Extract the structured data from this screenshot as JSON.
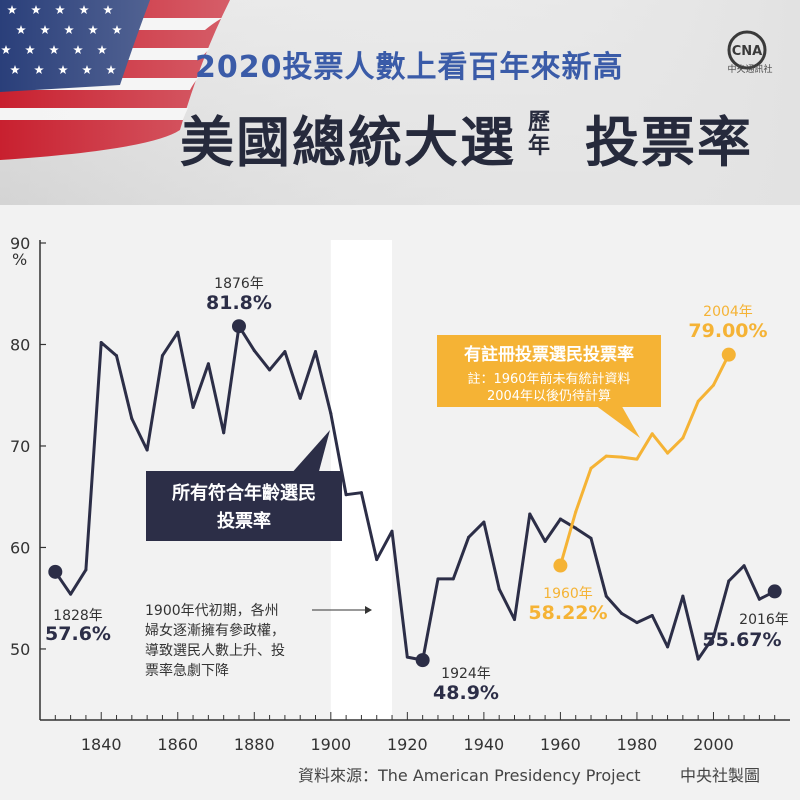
{
  "header": {
    "subtitle": "2020投票人數上看百年來新高",
    "title_part1": "美國總統大選",
    "title_small_top": "歷",
    "title_small_bottom": "年",
    "title_part2": "投票率",
    "logo_text": "CNA",
    "logo_sub": "中央通訊社"
  },
  "footer": {
    "source": "資料來源：The American Presidency Project",
    "credit": "中央社製圖"
  },
  "colors": {
    "all_series": "#2c2e47",
    "registered_series": "#f5b335",
    "title_blue": "#3a5ba8",
    "header_bg": "#dcdcdc"
  },
  "chart_data": {
    "type": "line",
    "title": "",
    "xlabel": "",
    "ylabel": "%",
    "xlim": [
      1824,
      2020
    ],
    "ylim": [
      43,
      90
    ],
    "x_ticks": [
      1840,
      1860,
      1880,
      1900,
      1920,
      1940,
      1960,
      1980,
      2000
    ],
    "y_ticks": [
      50,
      60,
      70,
      80,
      90
    ],
    "y_unit": "%",
    "grid": false,
    "shaded_band": {
      "x": [
        1900,
        1916
      ]
    },
    "series": [
      {
        "name": "所有符合年齡選民投票率",
        "color": "#2c2e47",
        "x": [
          1828,
          1832,
          1836,
          1840,
          1844,
          1848,
          1852,
          1856,
          1860,
          1864,
          1868,
          1872,
          1876,
          1880,
          1884,
          1888,
          1892,
          1896,
          1900,
          1904,
          1908,
          1912,
          1916,
          1920,
          1924,
          1928,
          1932,
          1936,
          1940,
          1944,
          1948,
          1952,
          1956,
          1960,
          1964,
          1968,
          1972,
          1976,
          1980,
          1984,
          1988,
          1992,
          1996,
          2000,
          2004,
          2008,
          2012,
          2016
        ],
        "y": [
          57.6,
          55.4,
          57.8,
          80.2,
          78.9,
          72.7,
          69.6,
          78.9,
          81.2,
          73.8,
          78.1,
          71.3,
          81.8,
          79.4,
          77.5,
          79.3,
          74.7,
          79.3,
          73.2,
          65.2,
          65.4,
          58.8,
          61.6,
          49.2,
          48.9,
          56.9,
          56.9,
          61.0,
          62.5,
          55.9,
          52.9,
          63.3,
          60.6,
          62.8,
          61.9,
          60.9,
          55.2,
          53.5,
          52.6,
          53.3,
          50.2,
          55.2,
          49.0,
          51.2,
          56.7,
          58.2,
          54.9,
          55.67
        ]
      },
      {
        "name": "有註冊投票選民投票率",
        "color": "#f5b335",
        "x": [
          1960,
          1964,
          1968,
          1972,
          1976,
          1980,
          1984,
          1988,
          1992,
          1996,
          2000,
          2004
        ],
        "y": [
          58.22,
          63.5,
          67.8,
          69.0,
          68.9,
          68.7,
          71.2,
          69.3,
          70.8,
          74.4,
          76.0,
          79.0
        ]
      }
    ],
    "annotations": {
      "p1828": {
        "year": "1828年",
        "value": "57.6%"
      },
      "p1876": {
        "year": "1876年",
        "value": "81.8%"
      },
      "p1924": {
        "year": "1924年",
        "value": "48.9%"
      },
      "p1960": {
        "year": "1960年",
        "value": "58.22%"
      },
      "p2004": {
        "year": "2004年",
        "value": "79.00%"
      },
      "p2016": {
        "year": "2016年",
        "value": "55.67%"
      },
      "all_label_line1": "所有符合年齡選民",
      "all_label_line2": "投票率",
      "reg_label": "有註冊投票選民投票率",
      "reg_note_line1": "註：1960年前未有統計資料",
      "reg_note_line2": "2004年以後仍待計算",
      "women_note": [
        "1900年代初期，各州",
        "婦女逐漸擁有參政權，",
        "導致選民人數上升、投",
        "票率急劇下降"
      ]
    }
  }
}
